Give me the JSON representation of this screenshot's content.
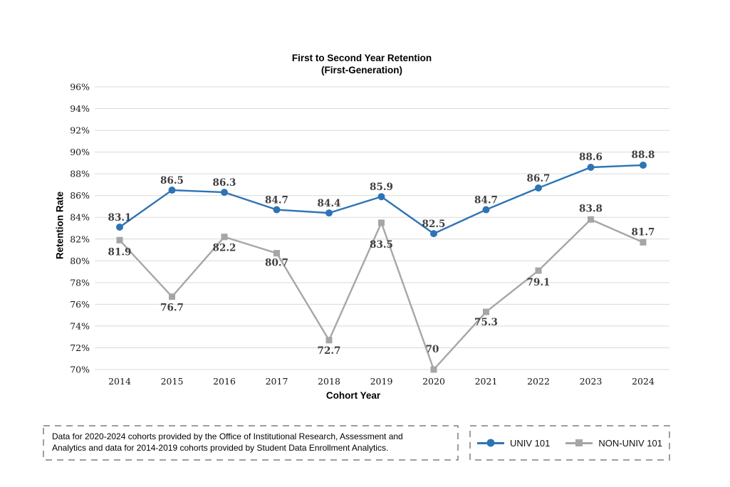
{
  "title": {
    "line1": "First to Second Year Retention",
    "line2": "(First-Generation)"
  },
  "y_axis_title": "Retention Rate",
  "x_axis_title": "Cohort Year",
  "footer": {
    "line1": "Data for 2020-2024 cohorts provided by the Office of Institutional Research, Assessment and",
    "line2": "Analytics and data for 2014-2019 cohorts provided by Student Data Enrollment Analytics."
  },
  "legend": [
    {
      "label": "UNIV 101",
      "color": "#2E74B5",
      "marker": "circle"
    },
    {
      "label": "NON-UNIV 101",
      "color": "#A6A6A6",
      "marker": "square"
    }
  ],
  "colors": {
    "grid": "#D9D9D9",
    "data_label": "#3F3F3F",
    "axis_text": "#141414",
    "box_border": "#7F7F7F",
    "univ_blue": "#2E74B5",
    "non_univ_gray": "#A6A6A6"
  },
  "chart_data": {
    "type": "line",
    "title": "First to Second Year Retention (First-Generation)",
    "xlabel": "Cohort Year",
    "ylabel": "Retention Rate",
    "categories": [
      "2014",
      "2015",
      "2016",
      "2017",
      "2018",
      "2019",
      "2020",
      "2021",
      "2022",
      "2023",
      "2024"
    ],
    "ylim": [
      70,
      96
    ],
    "ytick_step": 2,
    "ytick_suffix": "%",
    "grid": true,
    "legend_position": "bottom",
    "series": [
      {
        "name": "UNIV 101",
        "color": "#2E74B5",
        "marker": "circle",
        "values": [
          83.1,
          86.5,
          86.3,
          84.7,
          84.4,
          85.9,
          82.5,
          84.7,
          86.7,
          88.6,
          88.8
        ],
        "label_dy": [
          -9,
          -9,
          -9,
          -9,
          -9,
          -9,
          -9,
          -9,
          -9,
          -10,
          -10
        ],
        "label_dx": [
          0,
          0,
          0,
          0,
          0,
          0,
          0,
          0,
          0,
          0,
          0
        ]
      },
      {
        "name": "NON-UNIV 101",
        "color": "#A6A6A6",
        "marker": "square",
        "values": [
          81.9,
          76.7,
          82.2,
          80.7,
          72.7,
          83.5,
          70,
          75.3,
          79.1,
          83.8,
          81.7
        ],
        "label_dy": [
          21,
          20,
          20,
          18,
          19,
          35,
          -24,
          19,
          21,
          -11,
          -10
        ],
        "label_dx": [
          0,
          0,
          0,
          0,
          0,
          0,
          -2,
          0,
          0,
          0,
          0
        ]
      }
    ]
  }
}
